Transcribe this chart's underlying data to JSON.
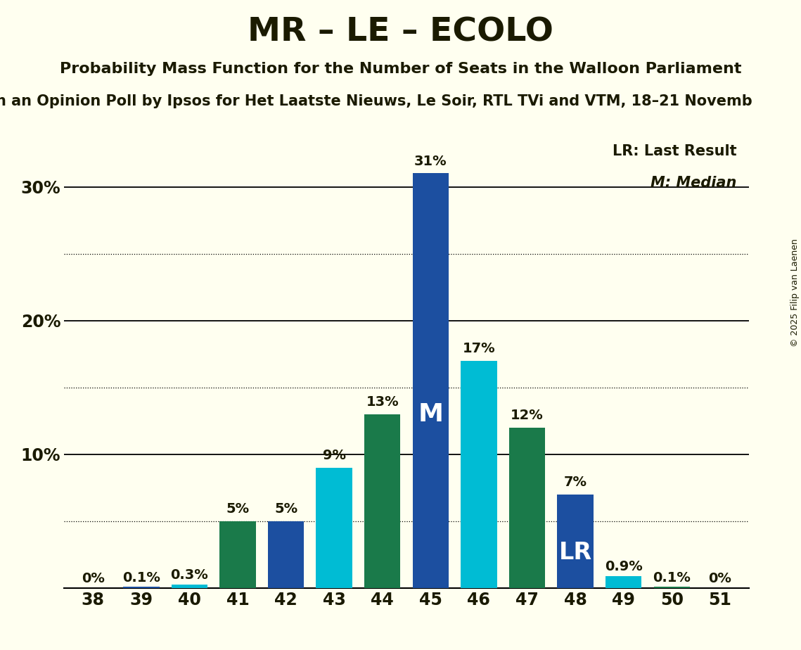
{
  "title": "MR – LE – ECOLO",
  "subtitle": "Probability Mass Function for the Number of Seats in the Walloon Parliament",
  "subtitle2": "n an Opinion Poll by Ipsos for Het Laatste Nieuws, Le Soir, RTL TVi and VTM, 18–21 Novemb",
  "copyright": "© 2025 Filip van Laenen",
  "seats": [
    38,
    39,
    40,
    41,
    42,
    43,
    44,
    45,
    46,
    47,
    48,
    49,
    50,
    51
  ],
  "probabilities": [
    0.0,
    0.1,
    0.3,
    5.0,
    5.0,
    9.0,
    13.0,
    31.0,
    17.0,
    12.0,
    7.0,
    0.9,
    0.1,
    0.0
  ],
  "bar_colors": [
    "#1a7a4a",
    "#1c4fa0",
    "#00bcd4",
    "#1a7a4a",
    "#1c4fa0",
    "#00bcd4",
    "#1a7a4a",
    "#1c4fa0",
    "#00bcd4",
    "#1a7a4a",
    "#1c4fa0",
    "#00bcd4",
    "#1a7a4a",
    "#1c4fa0"
  ],
  "median_seat": 45,
  "lr_seat": 48,
  "background_color": "#fffff0",
  "text_color": "#1a1a00",
  "ylim": [
    0,
    34
  ],
  "solid_gridlines": [
    10,
    20,
    30
  ],
  "dotted_gridlines": [
    5,
    15,
    25
  ],
  "lr_legend": "LR: Last Result",
  "m_legend": "M: Median"
}
